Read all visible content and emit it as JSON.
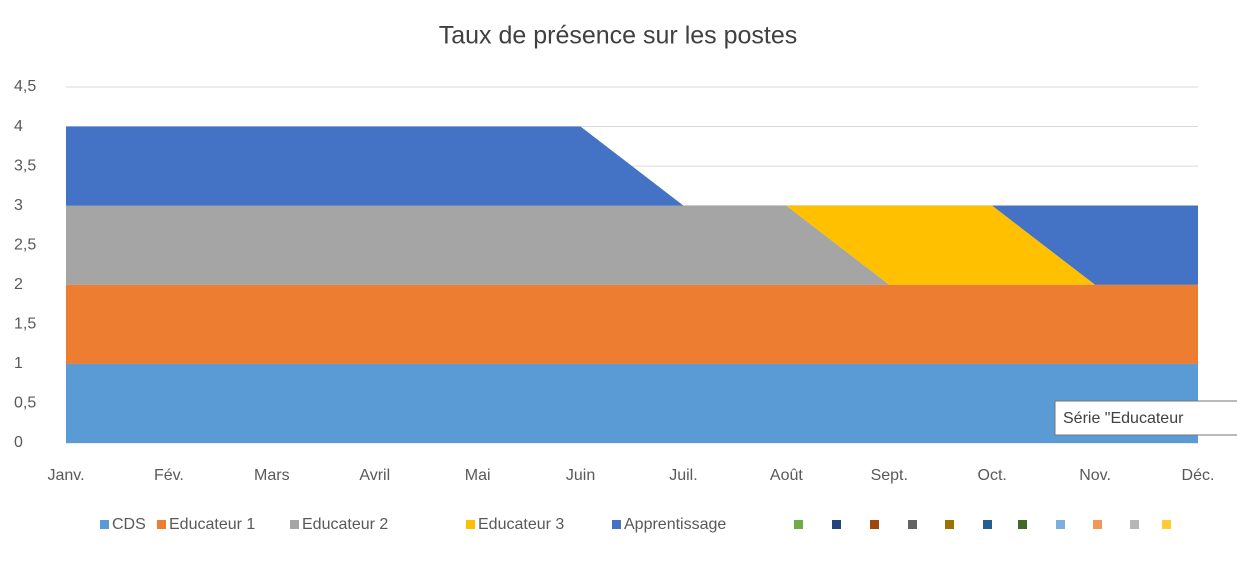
{
  "chart_data": {
    "type": "stacked_area",
    "title": "Taux de présence sur les postes",
    "categories": [
      "Janv.",
      "Fév.",
      "Mars",
      "Avril",
      "Mai",
      "Juin",
      "Juil.",
      "Août",
      "Sept.",
      "Oct.",
      "Nov.",
      "Déc."
    ],
    "series": [
      {
        "name": "CDS",
        "color": "#5b9bd5",
        "values": [
          1,
          1,
          1,
          1,
          1,
          1,
          1,
          1,
          1,
          1,
          1,
          1
        ]
      },
      {
        "name": "Educateur 1",
        "color": "#ed7d31",
        "values": [
          1,
          1,
          1,
          1,
          1,
          1,
          1,
          1,
          1,
          1,
          1,
          1
        ]
      },
      {
        "name": "Educateur 2",
        "color": "#a5a5a5",
        "values": [
          1,
          1,
          1,
          1,
          1,
          1,
          1,
          1,
          0,
          0,
          0,
          0
        ]
      },
      {
        "name": "Educateur 3",
        "color": "#ffc000",
        "values": [
          0,
          0,
          0,
          0,
          0,
          0,
          0,
          0,
          1,
          1,
          0,
          0
        ]
      },
      {
        "name": "Apprentissage",
        "color": "#4472c4",
        "values": [
          1,
          1,
          1,
          1,
          1,
          1,
          0,
          0,
          0,
          0,
          1,
          1
        ]
      }
    ],
    "ylim": [
      0,
      4.5
    ],
    "yticks": [
      0,
      {
        "value": 0.5,
        "label": "0,5"
      },
      1,
      {
        "value": 1.5,
        "label": "1,5"
      },
      2,
      {
        "value": 2.5,
        "label": "2,5"
      },
      3,
      {
        "value": 3.5,
        "label": "3,5"
      },
      4,
      {
        "value": 4.5,
        "label": "4,5"
      }
    ],
    "grid": true,
    "legend": "bottom",
    "tooltip": "Série \"Educateur"
  }
}
